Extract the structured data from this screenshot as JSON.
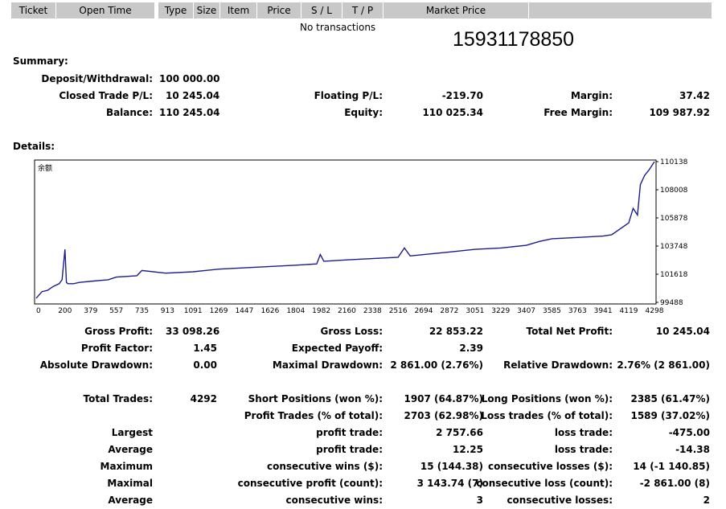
{
  "table_header": {
    "ticket": "Ticket",
    "open_time": "Open Time",
    "type": "Type",
    "size": "Size",
    "item": "Item",
    "price": "Price",
    "sl": "S / L",
    "tp": "T / P",
    "market_price": "Market Price"
  },
  "no_transactions": "No transactions",
  "account_number": "15931178850",
  "summary": {
    "title": "Summary:",
    "deposit_label": "Deposit/Withdrawal:",
    "deposit_value": "100 000.00",
    "closed_pl_label": "Closed Trade P/L:",
    "closed_pl_value": "10 245.04",
    "balance_label": "Balance:",
    "balance_value": "110 245.04",
    "floating_label": "Floating P/L:",
    "floating_value": "-219.70",
    "equity_label": "Equity:",
    "equity_value": "110 025.34",
    "margin_label": "Margin:",
    "margin_value": "37.42",
    "free_margin_label": "Free Margin:",
    "free_margin_value": "109 987.92"
  },
  "details": {
    "title": "Details:",
    "gross_profit_label": "Gross Profit:",
    "gross_profit_value": "33 098.26",
    "gross_loss_label": "Gross Loss:",
    "gross_loss_value": "22 853.22",
    "total_net_label": "Total Net Profit:",
    "total_net_value": "10 245.04",
    "profit_factor_label": "Profit Factor:",
    "profit_factor_value": "1.45",
    "expected_payoff_label": "Expected Payoff:",
    "expected_payoff_value": "2.39",
    "abs_dd_label": "Absolute Drawdown:",
    "abs_dd_value": "0.00",
    "max_dd_label": "Maximal Drawdown:",
    "max_dd_value": "2 861.00 (2.76%)",
    "rel_dd_label": "Relative Drawdown:",
    "rel_dd_value": "2.76% (2 861.00)",
    "total_trades_label": "Total Trades:",
    "total_trades_value": "4292",
    "short_label": "Short Positions (won %):",
    "short_value": "1907 (64.87%)",
    "long_label": "Long Positions (won %):",
    "long_value": "2385 (61.47%)",
    "profit_trades_label": "Profit Trades (% of total):",
    "profit_trades_value": "2703 (62.98%)",
    "loss_trades_label": "Loss trades (% of total):",
    "loss_trades_value": "1589 (37.02%)",
    "largest_label": "Largest",
    "largest_profit_label": "profit trade:",
    "largest_profit_value": "2 757.66",
    "largest_loss_label": "loss trade:",
    "largest_loss_value": "-475.00",
    "average_label": "Average",
    "average_profit_label": "profit trade:",
    "average_profit_value": "12.25",
    "average_loss_label": "loss trade:",
    "average_loss_value": "-14.38",
    "maximum_label": "Maximum",
    "max_wins_label": "consecutive wins ($):",
    "max_wins_value": "15 (144.38)",
    "max_losses_label": "consecutive losses ($):",
    "max_losses_value": "14 (-1 140.85)",
    "maximal_label": "Maximal",
    "maximal_profit_label": "consecutive profit (count):",
    "maximal_profit_value": "3 143.74 (7)",
    "maximal_loss_label": "consecutive loss (count):",
    "maximal_loss_value": "-2 861.00 (8)",
    "average2_label": "Average",
    "avg_cons_wins_label": "consecutive wins:",
    "avg_cons_wins_value": "3",
    "avg_cons_losses_label": "consecutive losses:",
    "avg_cons_losses_value": "2"
  },
  "chart_data": {
    "type": "line",
    "title": "余额",
    "x_ticks": [
      0,
      200,
      379,
      557,
      735,
      913,
      1091,
      1269,
      1447,
      1626,
      1804,
      1982,
      2160,
      2338,
      2516,
      2694,
      2872,
      3051,
      3229,
      3407,
      3585,
      3763,
      3941,
      4119,
      4298
    ],
    "y_ticks": [
      99488,
      101618,
      103748,
      105878,
      108008,
      110138
    ],
    "xlim": [
      0,
      4298
    ],
    "ylim": [
      99488,
      110138
    ],
    "line_color": "#1c1c8c",
    "grid": false,
    "series": [
      {
        "x": [
          0,
          40,
          80,
          120,
          160,
          180,
          200,
          210,
          220,
          260,
          300,
          400,
          500,
          557,
          700,
          735,
          900,
          1091,
          1269,
          1447,
          1626,
          1804,
          1950,
          1975,
          2000,
          2160,
          2338,
          2516,
          2560,
          2600,
          2694,
          2872,
          3051,
          3229,
          3407,
          3500,
          3585,
          3763,
          3941,
          4000,
          4119,
          4150,
          4180,
          4200,
          4230,
          4260,
          4298
        ],
        "y": [
          99800,
          100300,
          100400,
          100700,
          100900,
          101200,
          103500,
          101000,
          100900,
          100900,
          101000,
          101100,
          101200,
          101400,
          101500,
          101900,
          101700,
          101800,
          102000,
          102100,
          102200,
          102300,
          102400,
          103100,
          102600,
          102700,
          102800,
          102900,
          103600,
          103000,
          103100,
          103300,
          103500,
          103600,
          103800,
          104100,
          104300,
          104400,
          104500,
          104600,
          105500,
          106600,
          106100,
          108400,
          109100,
          109500,
          110138
        ]
      }
    ]
  }
}
